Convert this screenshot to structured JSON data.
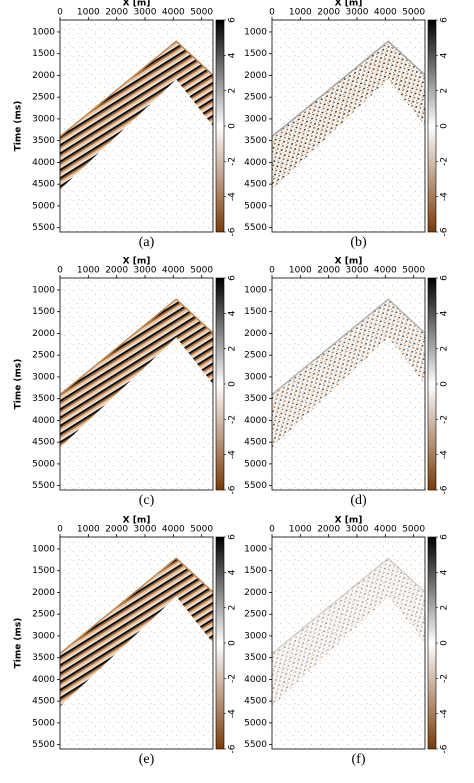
{
  "chart_data": [
    {
      "type": "image",
      "caption": "(a)",
      "xlabel": "X [m]",
      "ylabel": "Time (ms)",
      "xlim": [
        0,
        5400
      ],
      "ylim": [
        725,
        5600
      ],
      "xticks": [
        0,
        1000,
        2000,
        3000,
        4000,
        5000
      ],
      "yticks": [
        1000,
        1500,
        2000,
        2500,
        3000,
        3500,
        4000,
        4500,
        5000,
        5500
      ],
      "clim": [
        -6,
        6
      ],
      "cticks": [
        6,
        4,
        2,
        0,
        -2,
        -4,
        -6
      ]
    },
    {
      "type": "image",
      "caption": "(b)",
      "xlabel": "X [m]",
      "xlim": [
        0,
        5400
      ],
      "ylim": [
        725,
        5600
      ],
      "xticks": [
        0,
        1000,
        2000,
        3000,
        4000,
        5000
      ],
      "yticks": [
        1000,
        1500,
        2000,
        2500,
        3000,
        3500,
        4000,
        4500,
        5000,
        5500
      ],
      "clim": [
        -6,
        6
      ],
      "cticks": [
        6,
        4,
        2,
        0,
        -2,
        -4,
        -6
      ]
    },
    {
      "type": "image",
      "caption": "(c)",
      "xlabel": "X [m]",
      "ylabel": "Time (ms)",
      "xlim": [
        0,
        5400
      ],
      "ylim": [
        725,
        5600
      ],
      "xticks": [
        0,
        1000,
        2000,
        3000,
        4000,
        5000
      ],
      "yticks": [
        1000,
        1500,
        2000,
        2500,
        3000,
        3500,
        4000,
        4500,
        5000,
        5500
      ],
      "clim": [
        -6,
        6
      ],
      "cticks": [
        6,
        4,
        2,
        0,
        -2,
        -4,
        -6
      ]
    },
    {
      "type": "image",
      "caption": "(d)",
      "xlabel": "X [m]",
      "xlim": [
        0,
        5400
      ],
      "ylim": [
        725,
        5600
      ],
      "xticks": [
        0,
        1000,
        2000,
        3000,
        4000,
        5000
      ],
      "yticks": [
        1000,
        1500,
        2000,
        2500,
        3000,
        3500,
        4000,
        4500,
        5000,
        5500
      ],
      "clim": [
        -6,
        6
      ],
      "cticks": [
        6,
        4,
        2,
        0,
        -2,
        -4,
        -6
      ]
    },
    {
      "type": "image",
      "caption": "(e)",
      "xlabel": "X [m]",
      "ylabel": "Time (ms)",
      "xlim": [
        0,
        5400
      ],
      "ylim": [
        725,
        5600
      ],
      "xticks": [
        0,
        1000,
        2000,
        3000,
        4000,
        5000
      ],
      "yticks": [
        1000,
        1500,
        2000,
        2500,
        3000,
        3500,
        4000,
        4500,
        5000,
        5500
      ],
      "clim": [
        -6,
        6
      ],
      "cticks": [
        6,
        4,
        2,
        0,
        -2,
        -4,
        -6
      ]
    },
    {
      "type": "image",
      "caption": "(f)",
      "xlabel": "X [m]",
      "xlim": [
        0,
        5400
      ],
      "ylim": [
        725,
        5600
      ],
      "xticks": [
        0,
        1000,
        2000,
        3000,
        4000,
        5000
      ],
      "yticks": [
        1000,
        1500,
        2000,
        2500,
        3000,
        3500,
        4000,
        4500,
        5000,
        5500
      ],
      "clim": [
        -6,
        6
      ],
      "cticks": [
        6,
        4,
        2,
        0,
        -2,
        -4,
        -6
      ]
    }
  ]
}
